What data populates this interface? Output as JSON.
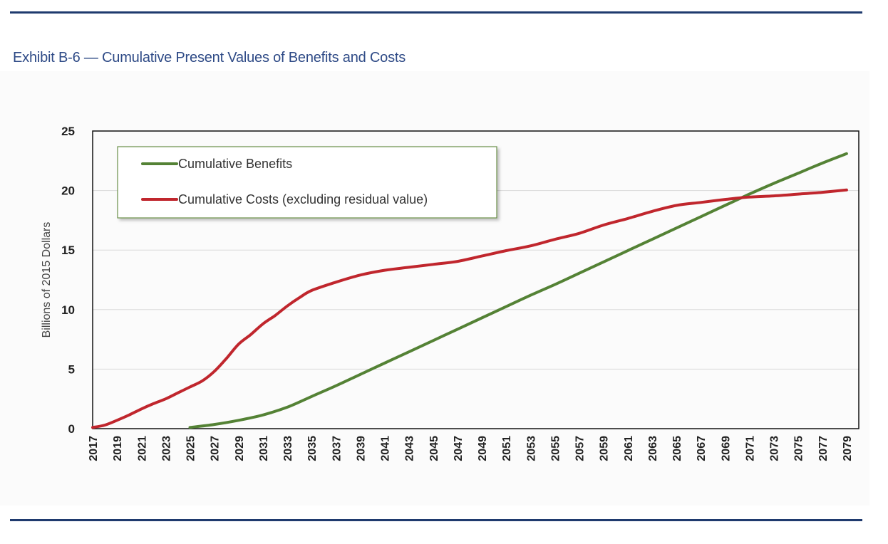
{
  "header": {
    "title": "Exhibit B-6 — Cumulative Present Values of Benefits and Costs"
  },
  "chart_data": {
    "type": "line",
    "title": "",
    "xlabel": "",
    "ylabel": "Billions of 2015 Dollars",
    "xlim": [
      2017,
      2080
    ],
    "ylim": [
      0,
      25
    ],
    "yticks": [
      0,
      5,
      10,
      15,
      20,
      25
    ],
    "xtick_labels": [
      "2017",
      "2019",
      "2021",
      "2023",
      "2025",
      "2027",
      "2029",
      "2031",
      "2033",
      "2035",
      "2037",
      "2039",
      "2041",
      "2043",
      "2045",
      "2047",
      "2049",
      "2051",
      "2053",
      "2055",
      "2057",
      "2059",
      "2061",
      "2063",
      "2065",
      "2067",
      "2069",
      "2071",
      "2073",
      "2075",
      "2077",
      "2079"
    ],
    "grid": "horizontal",
    "legend_position": "top-left",
    "series": [
      {
        "name": "Cumulative Benefits",
        "color": "#548235",
        "points": [
          [
            2025,
            0.1
          ],
          [
            2027,
            0.35
          ],
          [
            2029,
            0.7
          ],
          [
            2031,
            1.15
          ],
          [
            2033,
            1.8
          ],
          [
            2035,
            2.7
          ],
          [
            2037,
            3.6
          ],
          [
            2039,
            4.55
          ],
          [
            2041,
            5.5
          ],
          [
            2043,
            6.45
          ],
          [
            2045,
            7.4
          ],
          [
            2047,
            8.35
          ],
          [
            2049,
            9.3
          ],
          [
            2051,
            10.25
          ],
          [
            2053,
            11.2
          ],
          [
            2055,
            12.1
          ],
          [
            2057,
            13.05
          ],
          [
            2059,
            14.0
          ],
          [
            2061,
            14.95
          ],
          [
            2063,
            15.9
          ],
          [
            2065,
            16.85
          ],
          [
            2067,
            17.8
          ],
          [
            2069,
            18.75
          ],
          [
            2071,
            19.7
          ],
          [
            2073,
            20.6
          ],
          [
            2075,
            21.45
          ],
          [
            2077,
            22.3
          ],
          [
            2079,
            23.1
          ]
        ]
      },
      {
        "name": "Cumulative Costs (excluding residual value)",
        "color": "#c0262d",
        "points": [
          [
            2017,
            0.1
          ],
          [
            2018,
            0.3
          ],
          [
            2019,
            0.7
          ],
          [
            2020,
            1.15
          ],
          [
            2021,
            1.65
          ],
          [
            2022,
            2.1
          ],
          [
            2023,
            2.5
          ],
          [
            2024,
            3.0
          ],
          [
            2025,
            3.5
          ],
          [
            2026,
            4.0
          ],
          [
            2027,
            4.8
          ],
          [
            2028,
            5.9
          ],
          [
            2029,
            7.1
          ],
          [
            2030,
            7.9
          ],
          [
            2031,
            8.8
          ],
          [
            2032,
            9.5
          ],
          [
            2033,
            10.3
          ],
          [
            2034,
            11.0
          ],
          [
            2035,
            11.6
          ],
          [
            2037,
            12.3
          ],
          [
            2039,
            12.9
          ],
          [
            2041,
            13.3
          ],
          [
            2043,
            13.55
          ],
          [
            2045,
            13.8
          ],
          [
            2047,
            14.05
          ],
          [
            2049,
            14.5
          ],
          [
            2051,
            14.95
          ],
          [
            2053,
            15.35
          ],
          [
            2055,
            15.9
          ],
          [
            2057,
            16.4
          ],
          [
            2059,
            17.1
          ],
          [
            2061,
            17.65
          ],
          [
            2063,
            18.25
          ],
          [
            2065,
            18.75
          ],
          [
            2067,
            19.0
          ],
          [
            2069,
            19.25
          ],
          [
            2071,
            19.45
          ],
          [
            2073,
            19.55
          ],
          [
            2075,
            19.7
          ],
          [
            2077,
            19.85
          ],
          [
            2079,
            20.05
          ]
        ]
      }
    ]
  }
}
